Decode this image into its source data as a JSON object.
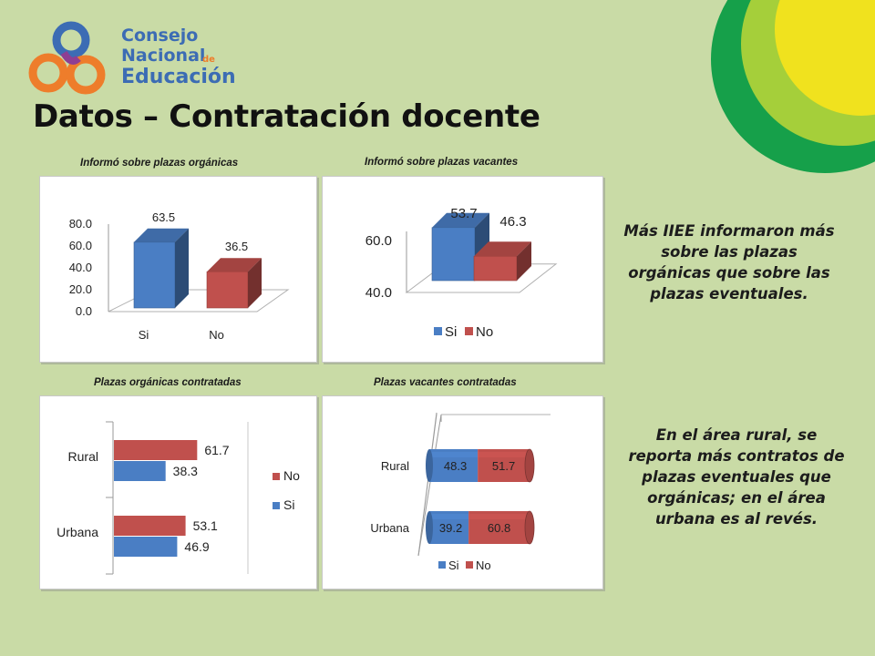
{
  "logo": {
    "line1": "Consejo",
    "line2": "Nacional",
    "small": "de",
    "line3": "Educación"
  },
  "title": "Datos – Contratación docente",
  "colors": {
    "si": "#4a7ec4",
    "no": "#c0504d",
    "background": "#c9dba6"
  },
  "notes": {
    "top": "Más IIEE informaron más sobre las plazas orgánicas que sobre las plazas eventuales.",
    "bottom": "En el área rural, se reporta más contratos de plazas eventuales que orgánicas; en el área urbana es al revés."
  },
  "chart_data": [
    {
      "id": "organicas",
      "type": "bar",
      "title": "Informó sobre plazas orgánicas",
      "categories": [
        "Si",
        "No"
      ],
      "values": [
        63.5,
        36.5
      ],
      "value_labels": [
        "63.5",
        "36.5"
      ],
      "yticks": [
        "0.0",
        "20.0",
        "40.0",
        "60.0",
        "80.0"
      ],
      "ylim": [
        0,
        80
      ],
      "legend": "none"
    },
    {
      "id": "vacantes",
      "type": "bar",
      "title": "Informó sobre plazas vacantes",
      "categories": [
        "Si",
        "No"
      ],
      "values": [
        53.7,
        46.3
      ],
      "value_labels": [
        "53.7",
        "46.3"
      ],
      "yticks": [
        "40.0",
        "60.0"
      ],
      "ylim": [
        40,
        60
      ],
      "legend": "bottom"
    },
    {
      "id": "organicas_contratadas",
      "type": "bar",
      "orientation": "horizontal",
      "title": "Plazas orgánicas contratadas",
      "categories": [
        "Rural",
        "Urbana"
      ],
      "series": [
        {
          "name": "No",
          "values": [
            61.7,
            53.1
          ],
          "labels": [
            "61.7",
            "53.1"
          ]
        },
        {
          "name": "Si",
          "values": [
            38.3,
            46.9
          ],
          "labels": [
            "38.3",
            "46.9"
          ]
        }
      ],
      "legend": "right"
    },
    {
      "id": "vacantes_contratadas",
      "type": "bar",
      "orientation": "horizontal",
      "stacked": true,
      "title": "Plazas vacantes contratadas",
      "categories": [
        "Rural",
        "Urbana"
      ],
      "series": [
        {
          "name": "Si",
          "values": [
            48.3,
            39.2
          ],
          "labels": [
            "48.3",
            "39.2"
          ]
        },
        {
          "name": "No",
          "values": [
            51.7,
            60.8
          ],
          "labels": [
            "51.7",
            "60.8"
          ]
        }
      ],
      "legend": "bottom"
    }
  ]
}
